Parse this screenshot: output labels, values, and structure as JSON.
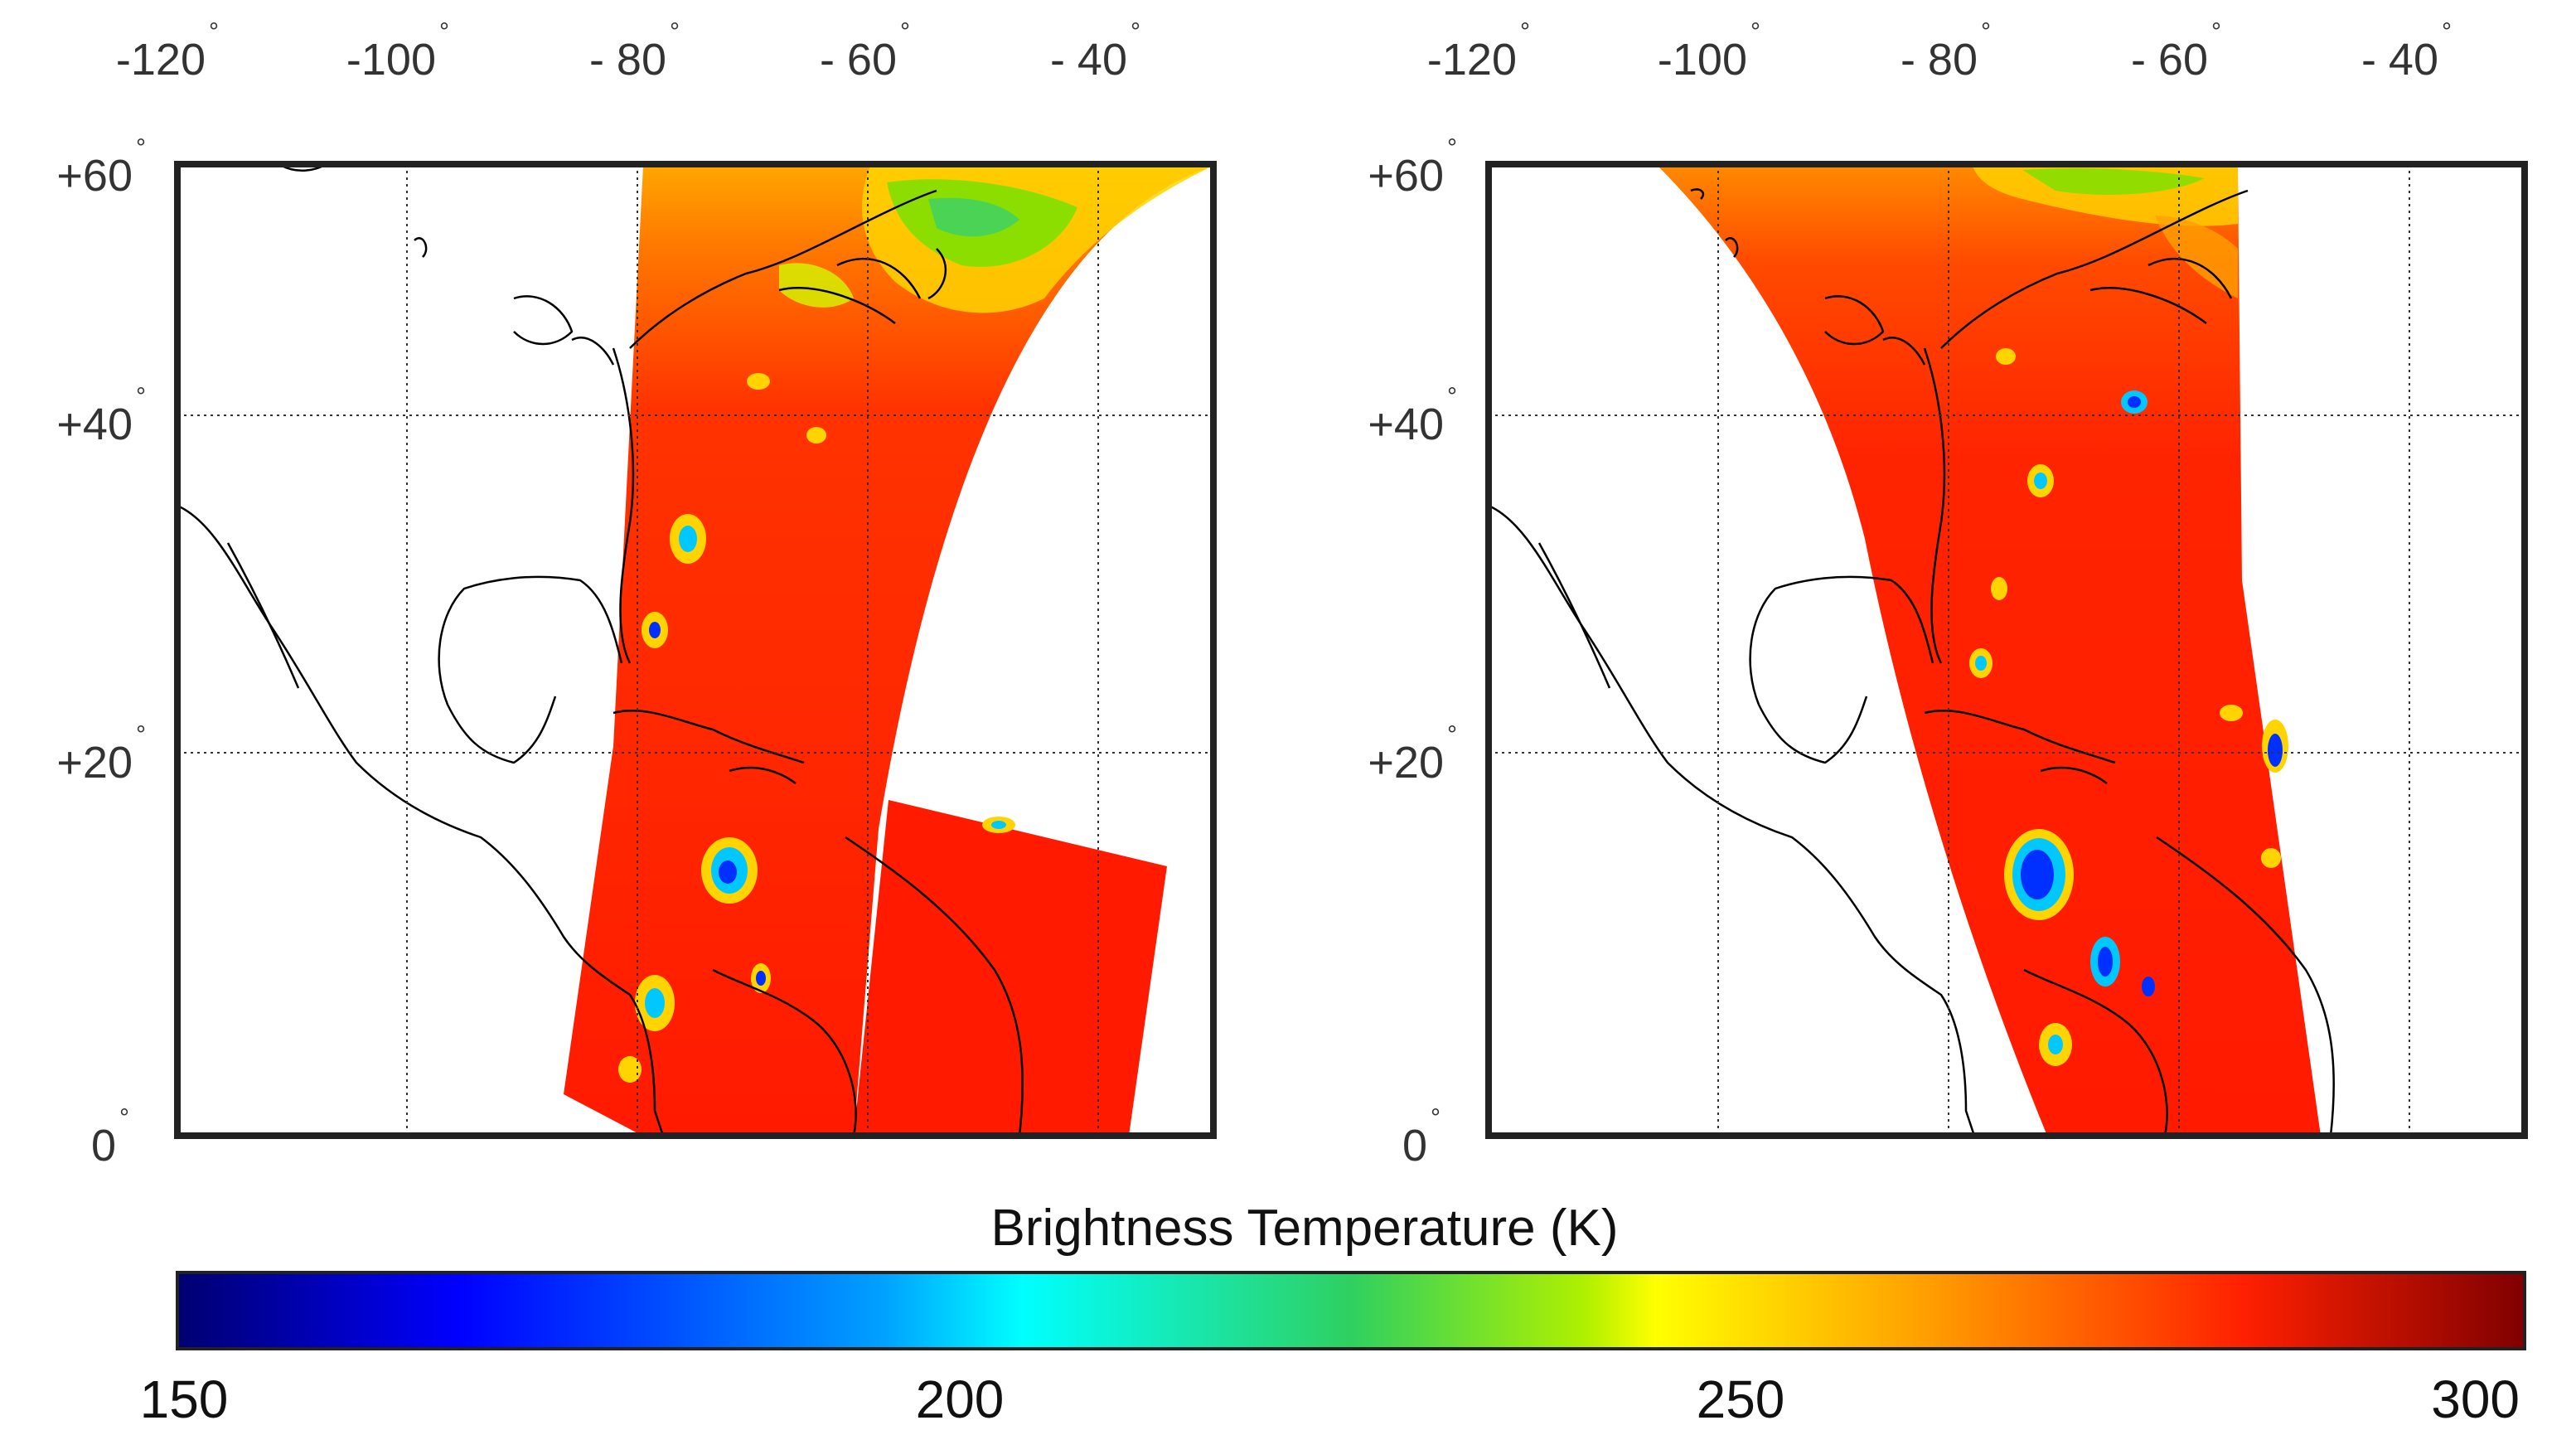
{
  "panels": [
    {
      "id": "left",
      "lon_ticks": [
        "-120",
        "-100",
        "- 80",
        "- 60",
        "- 40"
      ],
      "lat_ticks": [
        "+60",
        "+40",
        "+20",
        "0"
      ]
    },
    {
      "id": "right",
      "lon_ticks": [
        "-120",
        "-100",
        "- 80",
        "- 60",
        "- 40"
      ],
      "lat_ticks": [
        "+60",
        "+40",
        "+20",
        "0"
      ]
    }
  ],
  "degree_symbol": "°",
  "colorbar": {
    "title": "Brightness Temperature (K)",
    "ticks": [
      "150",
      "200",
      "250",
      "300"
    ],
    "range": [
      150,
      300
    ],
    "colormap": "jet"
  },
  "colors": {
    "warm": "#ff1a00",
    "orange": "#ff7a00",
    "yellow": "#ffd400",
    "green": "#7fe000",
    "cyan": "#00c8ff",
    "blue": "#0030ff",
    "coast": "#000000",
    "frame": "#222222"
  }
}
